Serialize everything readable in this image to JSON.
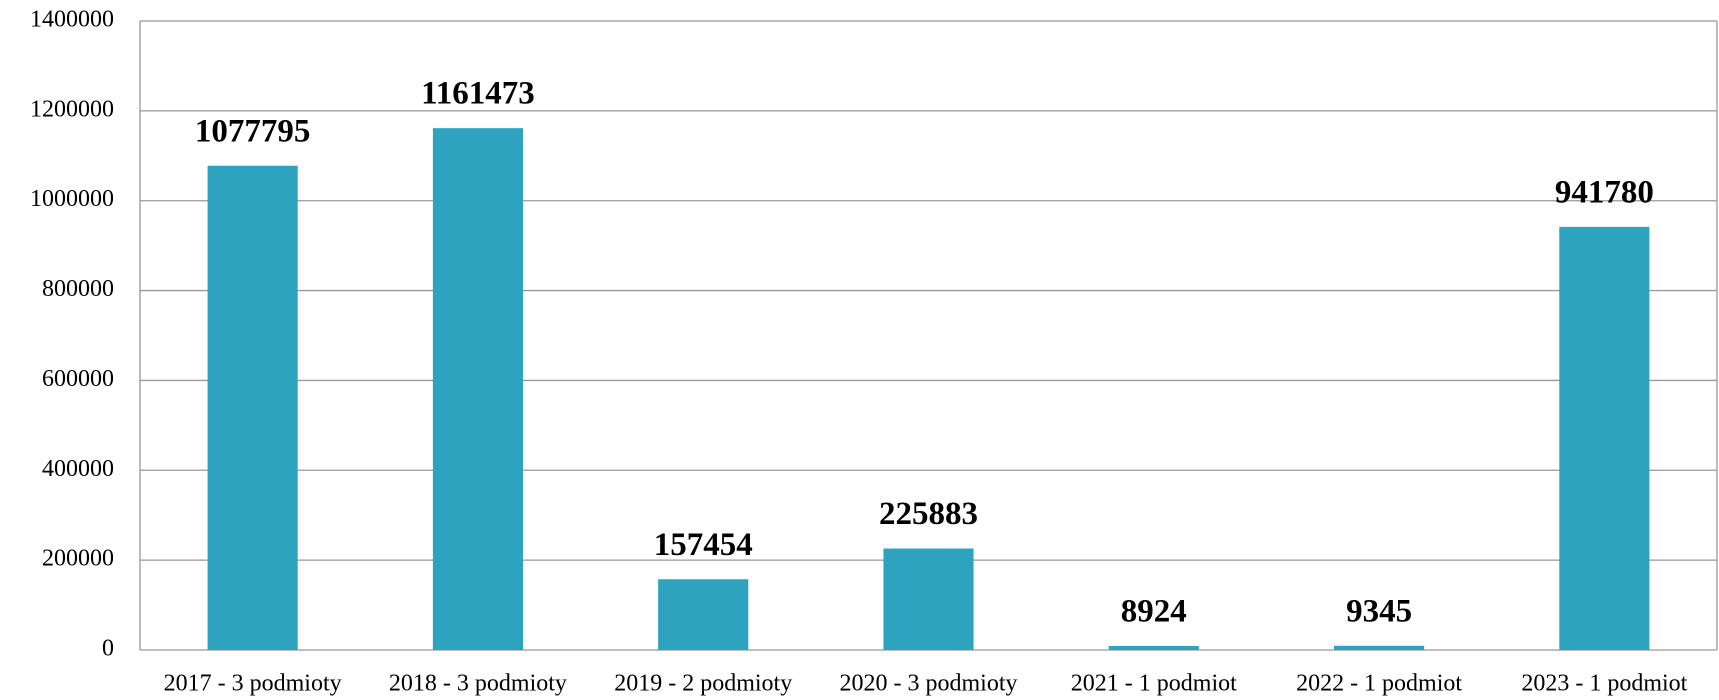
{
  "chart_data": {
    "type": "bar",
    "categories": [
      "2017 - 3 podmioty",
      "2018 - 3 podmioty",
      "2019 - 2 podmioty",
      "2020 - 3 podmioty",
      "2021 - 1 podmiot",
      "2022 - 1 podmiot",
      "2023 - 1 podmiot"
    ],
    "values": [
      1077795,
      1161473,
      157454,
      225883,
      8924,
      9345,
      941780
    ],
    "color": "#2ea3bf",
    "ylim": [
      0,
      1400000
    ],
    "yticks": [
      0,
      200000,
      400000,
      600000,
      800000,
      1000000,
      1200000,
      1400000
    ],
    "grid": true
  }
}
